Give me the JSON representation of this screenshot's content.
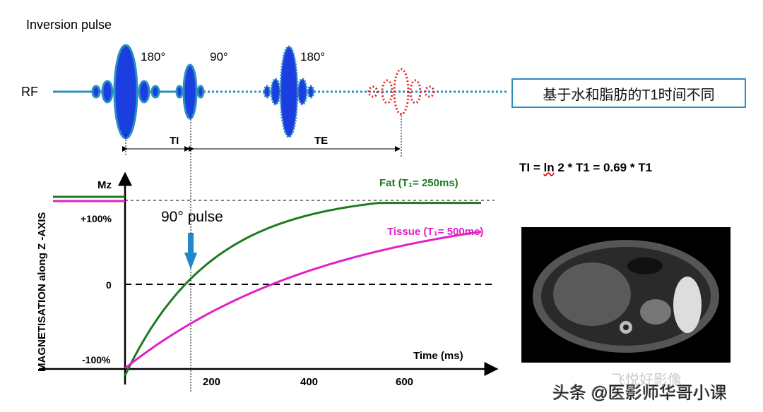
{
  "rf": {
    "title": "Inversion pulse",
    "label": "RF",
    "p1": "180°",
    "p2": "90°",
    "p3": "180°",
    "ti": "TI",
    "te": "TE"
  },
  "note": "基于水和脂肪的T1时间不同",
  "formula": {
    "a": "TI = ",
    "ln": "ln",
    "b": " 2 * T1 = 0.69 * T1"
  },
  "colors": {
    "fat": "#1e7a1e",
    "tissue": "#e020c8",
    "rf": "#1a3ee0",
    "echo": "#e02020",
    "accent": "#2a8fc0"
  },
  "chart_data": {
    "type": "line",
    "ylabel": "MAGNETISATION along Z -AXIS",
    "xlabel": "Time (ms)",
    "mz_label": "Mz",
    "yticks": [
      "+100%",
      "0",
      "-100%"
    ],
    "xticks": [
      "200",
      "400",
      "600"
    ],
    "pulse_label": "90° pulse",
    "series": [
      {
        "name": "Fat (T₁= 250ms)",
        "T1": 250
      },
      {
        "name": "Tissue (T₁= 500ms)",
        "T1": 500
      }
    ]
  },
  "watermark": {
    "a": "飞悦好影像",
    "b": "头条 @医影师华哥小课"
  }
}
